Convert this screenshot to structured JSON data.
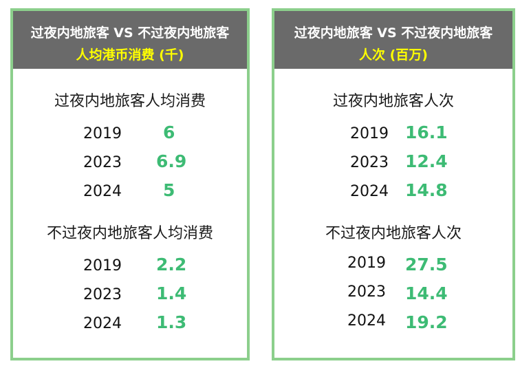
{
  "left_panel": {
    "header_line1": "过夜内地旅客 VS 不过夜内地旅客",
    "header_line2": "人均港币消费 (千)",
    "overnight_title": "过夜内地旅客人均消费",
    "overnight_rows": [
      {
        "year": "2019",
        "value": "6"
      },
      {
        "year": "2023",
        "value": "6.9"
      },
      {
        "year": "2024",
        "value": "5"
      }
    ],
    "same_day_title": "不过夜内地旅客人均消费",
    "same_day_rows": [
      {
        "year": "2019",
        "value": "2.2"
      },
      {
        "year": "2023",
        "value": "1.4"
      },
      {
        "year": "2024",
        "value": "1.3"
      }
    ]
  },
  "right_panel": {
    "header_line1": "过夜内地旅客 VS 不过夜内地旅客",
    "header_line2": "人次 (百万)",
    "overnight_title": "过夜内地旅客人次",
    "overnight_rows": [
      {
        "year": "2019",
        "value": "16.1"
      },
      {
        "year": "2023",
        "value": "12.4"
      },
      {
        "year": "2024",
        "value": "14.8"
      }
    ],
    "same_day_title": "不过夜内地旅客人次",
    "same_day_rows": [
      {
        "year": "2019",
        "value": "27.5"
      },
      {
        "year": "2023",
        "value": "14.4"
      },
      {
        "year": "2024",
        "value": "19.2"
      }
    ]
  }
}
